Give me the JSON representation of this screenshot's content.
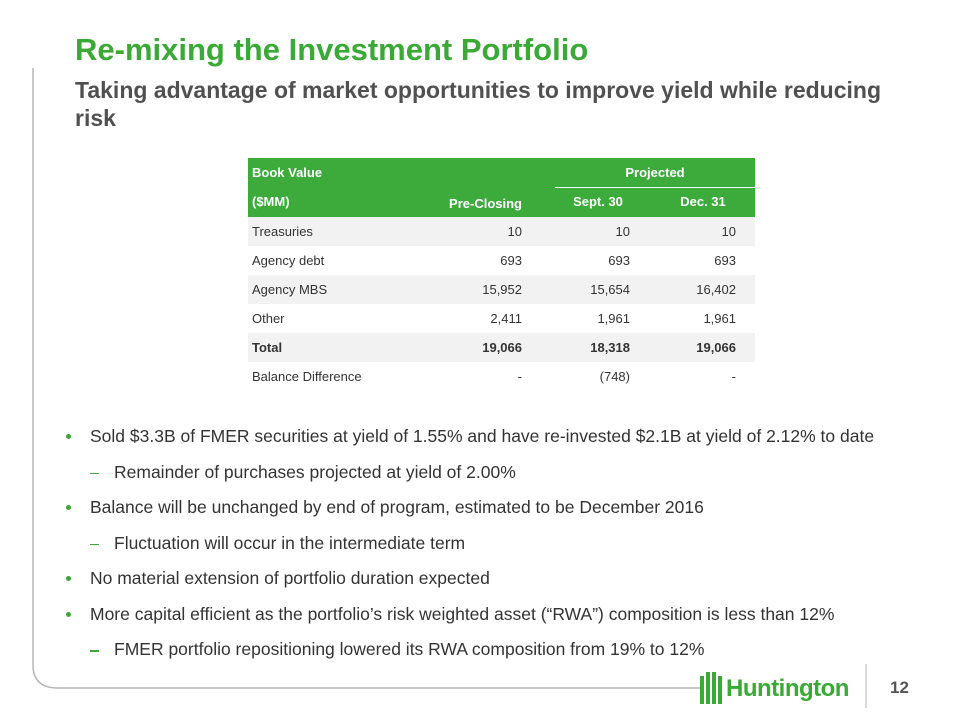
{
  "header": {
    "title": "Re-mixing the Investment Portfolio",
    "subtitle": "Taking advantage of market opportunities to improve yield while reducing risk"
  },
  "table": {
    "corner": [
      "Book Value",
      "($MM)"
    ],
    "column": "Pre-Closing",
    "group": "Projected",
    "group_columns": [
      "Sept. 30",
      "Dec. 31"
    ],
    "rows": [
      [
        "Treasuries",
        "10",
        "10",
        "10"
      ],
      [
        "Agency debt",
        "693",
        "693",
        "693"
      ],
      [
        "Agency MBS",
        "15,952",
        "15,654",
        "16,402"
      ],
      [
        "Other",
        "2,411",
        "1,961",
        "1,961"
      ],
      [
        "Total",
        "19,066",
        "18,318",
        "19,066"
      ],
      [
        "Balance Difference",
        "-",
        "(748)",
        "-"
      ]
    ]
  },
  "bullets": [
    {
      "text": "Sold $3.3B of FMER securities at yield of 1.55% and have re-invested $2.1B at yield of 2.12% to date",
      "sub": [
        "Remainder of purchases projected at yield of 2.00%"
      ]
    },
    {
      "text": "Balance will be unchanged by end of program, estimated to be December 2016",
      "sub": [
        "Fluctuation will occur in the intermediate term"
      ]
    },
    {
      "text": "No material extension of portfolio duration expected",
      "sub": []
    },
    {
      "text": "More capital efficient as the portfolio’s risk weighted asset (“RWA”) composition is less than 12%",
      "sub": [
        "FMER portfolio repositioning lowered its RWA composition from 19% to 12%"
      ]
    }
  ],
  "footer": {
    "logo": "Huntington",
    "page": "12"
  }
}
